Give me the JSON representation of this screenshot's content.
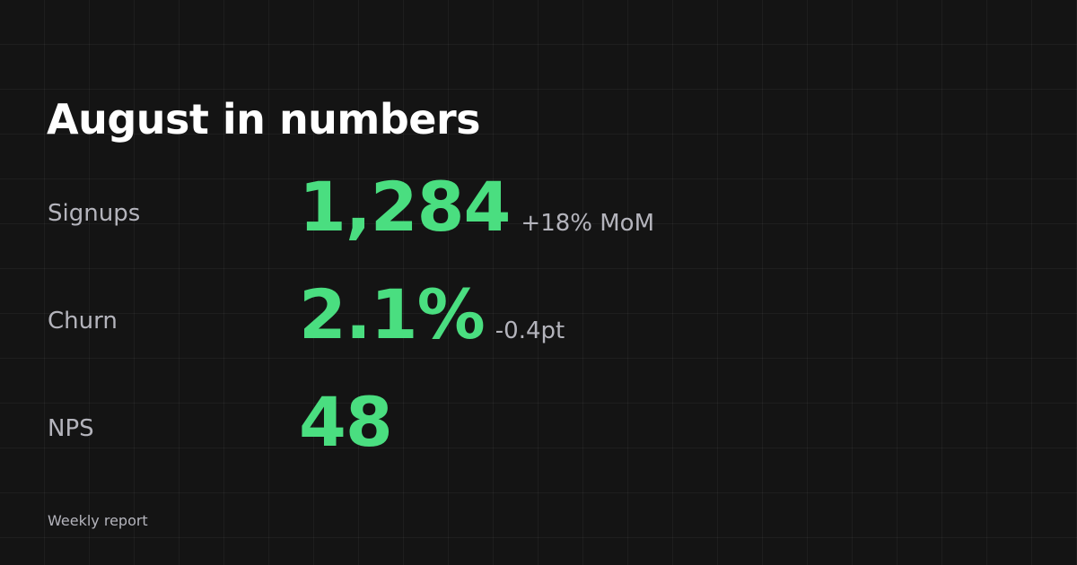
{
  "header": {
    "title": "August in numbers"
  },
  "metrics": [
    {
      "label": "Signups",
      "value": "1,284",
      "delta": "+18% MoM"
    },
    {
      "label": "Churn",
      "value": "2.1%",
      "delta": "-0.4pt"
    },
    {
      "label": "NPS",
      "value": "48"
    }
  ],
  "footer": {
    "text": "Weekly report"
  }
}
